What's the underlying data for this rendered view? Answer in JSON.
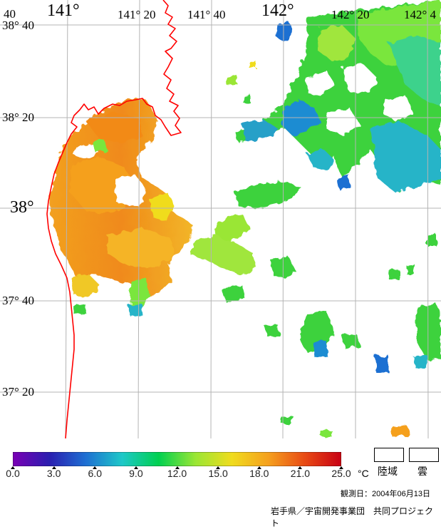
{
  "map": {
    "longitude_labels": [
      "141°",
      "141° 20",
      "141° 40",
      "142°",
      "142° 20",
      "142° 4"
    ],
    "latitude_labels": [
      "38° 40",
      "38° 20",
      "38°",
      "37° 40",
      "37° 20"
    ],
    "corner_label": "40"
  },
  "colorbar": {
    "ticks": [
      "0.0",
      "3.0",
      "6.0",
      "9.0",
      "12.0",
      "15.0",
      "18.0",
      "21.0",
      "25.0"
    ],
    "unit": "°C",
    "colors": [
      "#7a00b4",
      "#2a1eb0",
      "#1e6fd2",
      "#1ec8c8",
      "#00d050",
      "#9ae634",
      "#f0dc1e",
      "#f5a01e",
      "#e84a14",
      "#c80014"
    ]
  },
  "legend": {
    "land_label": "陸域",
    "cloud_label": "雲"
  },
  "footer": {
    "observation_date": "観測日：2004年06月13日",
    "credit": "岩手県／宇宙開発事業団　共同プロジェクト"
  },
  "palette": {
    "coastline": "#ff0000",
    "grid": "#b4b4b4"
  }
}
